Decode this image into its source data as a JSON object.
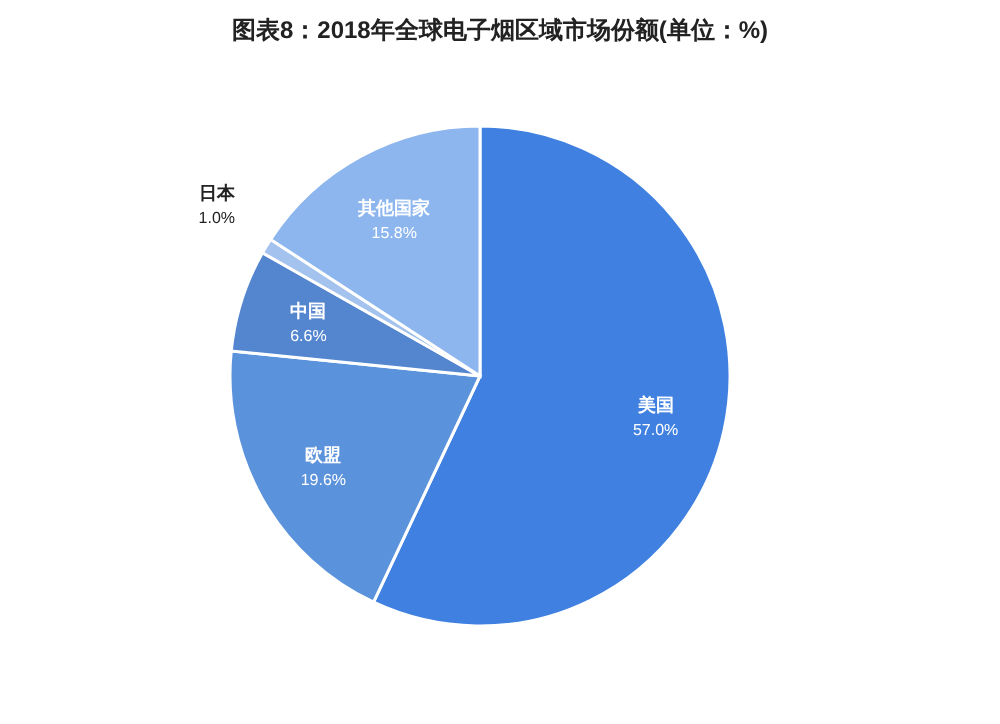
{
  "chart_data": {
    "type": "pie",
    "title": "图表8：2018年全球电子烟区域市场份额(单位：%)",
    "categories": [
      "美国",
      "欧盟",
      "中国",
      "日本",
      "其他国家"
    ],
    "values": [
      57.0,
      19.6,
      6.6,
      1.0,
      15.8
    ],
    "colors": [
      "#3f80e0",
      "#5b92dc",
      "#5486d0",
      "#a3c2ee",
      "#8db6ee"
    ],
    "value_labels": [
      "57.0%",
      "19.6%",
      "6.6%",
      "1.0%",
      "15.8%"
    ]
  }
}
